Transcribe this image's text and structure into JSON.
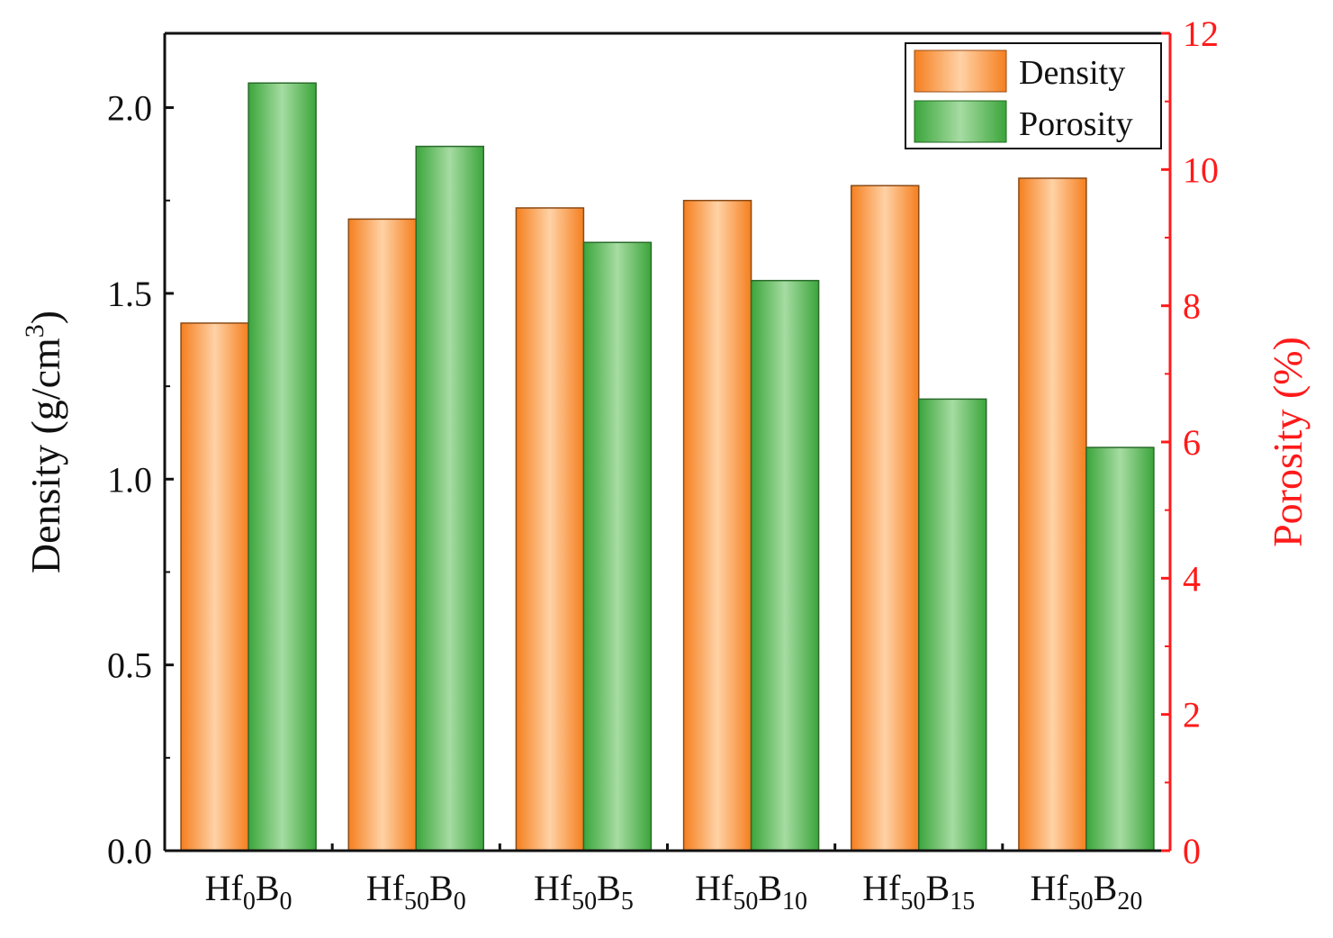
{
  "colors": {
    "density_dark": "#F57F1F",
    "density_light": "#FFD2A6",
    "porosity_dark": "#3BA53B",
    "porosity_light": "#A6DCA2",
    "right_axis": "#FF1A1A",
    "axis": "#111111"
  },
  "chart_data": {
    "type": "bar",
    "categories": [
      {
        "base": "Hf",
        "sub1": "0",
        "mid": "B",
        "sub2": "0"
      },
      {
        "base": "Hf",
        "sub1": "50",
        "mid": "B",
        "sub2": "0"
      },
      {
        "base": "Hf",
        "sub1": "50",
        "mid": "B",
        "sub2": "5"
      },
      {
        "base": "Hf",
        "sub1": "50",
        "mid": "B",
        "sub2": "10"
      },
      {
        "base": "Hf",
        "sub1": "50",
        "mid": "B",
        "sub2": "15"
      },
      {
        "base": "Hf",
        "sub1": "50",
        "mid": "B",
        "sub2": "20"
      }
    ],
    "series": [
      {
        "name": "Density",
        "axis": "left",
        "values": [
          1.42,
          1.7,
          1.73,
          1.75,
          1.79,
          1.81
        ]
      },
      {
        "name": "Porosity",
        "axis": "right",
        "values": [
          11.27,
          10.34,
          8.93,
          8.37,
          6.63,
          5.92
        ]
      }
    ],
    "ylabel_left": {
      "text": "Density (g/cm",
      "sup": "3",
      "close": ")"
    },
    "ylabel_right": "Porosity (%)",
    "ylim_left": [
      0,
      2.2
    ],
    "ylim_right": [
      0,
      12
    ],
    "yticks_left": [
      "0.0",
      "0.5",
      "1.0",
      "1.5",
      "2.0"
    ],
    "yticks_left_values": [
      0,
      0.5,
      1.0,
      1.5,
      2.0
    ],
    "yticks_right": [
      "0",
      "2",
      "4",
      "6",
      "8",
      "10",
      "12"
    ],
    "yticks_right_values": [
      0,
      2,
      4,
      6,
      8,
      10,
      12
    ],
    "legend": [
      "Density",
      "Porosity"
    ],
    "legend_position": "top-right"
  }
}
